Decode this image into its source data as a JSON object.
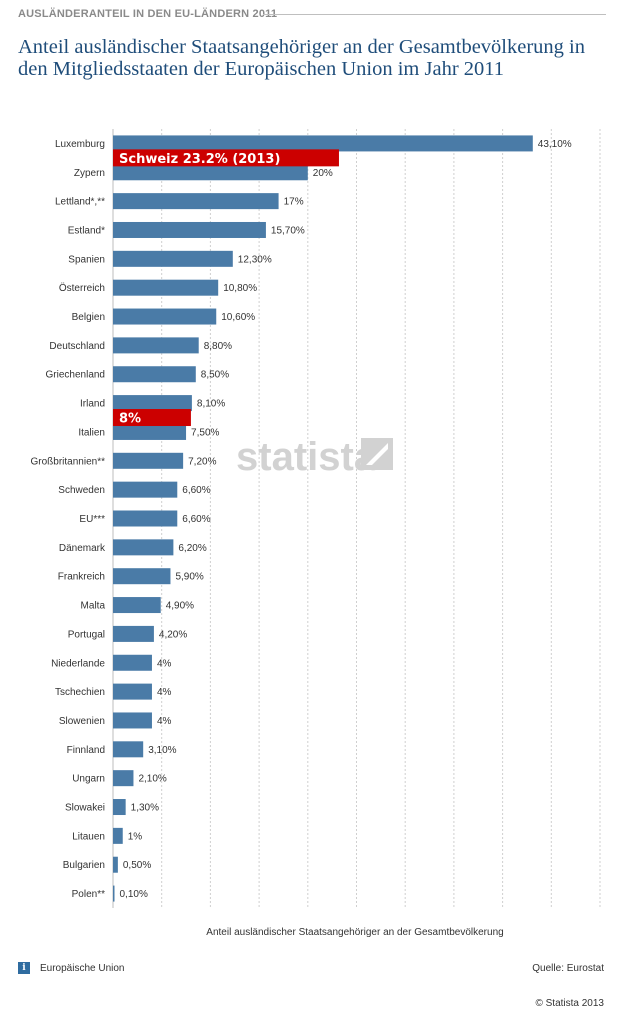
{
  "header": {
    "label": "AUSLÄNDERANTEIL IN DEN EU-LÄNDERN 2011",
    "title": "Anteil ausländischer Staatsangehöriger an der Gesamtbevölkerung in den Mitgliedsstaaten der Europäischen Union im Jahr 2011"
  },
  "chart_data": {
    "type": "bar",
    "orientation": "horizontal",
    "categories": [
      "Luxemburg",
      "Zypern",
      "Lettland*,**",
      "Estland*",
      "Spanien",
      "Österreich",
      "Belgien",
      "Deutschland",
      "Griechenland",
      "Irland",
      "Italien",
      "Großbritannien**",
      "Schweden",
      "EU***",
      "Dänemark",
      "Frankreich",
      "Malta",
      "Portugal",
      "Niederlande",
      "Tschechien",
      "Slowenien",
      "Finnland",
      "Ungarn",
      "Slowakei",
      "Litauen",
      "Bulgarien",
      "Polen**"
    ],
    "values": [
      43.1,
      20,
      17,
      15.7,
      12.3,
      10.8,
      10.6,
      8.8,
      8.5,
      8.1,
      7.5,
      7.2,
      6.6,
      6.6,
      6.2,
      5.9,
      4.9,
      4.2,
      4,
      4,
      4,
      3.1,
      2.1,
      1.3,
      1,
      0.5,
      0.1
    ],
    "value_labels": [
      "43,10%",
      "20%",
      "17%",
      "15,70%",
      "12,30%",
      "10,80%",
      "10,60%",
      "8,80%",
      "8,50%",
      "8,10%",
      "7,50%",
      "7,20%",
      "6,60%",
      "6,60%",
      "6,20%",
      "5,90%",
      "4,90%",
      "4,20%",
      "4%",
      "4%",
      "4%",
      "3,10%",
      "2,10%",
      "1,30%",
      "1%",
      "0,50%",
      "0,10%"
    ],
    "xlabel": "Anteil ausländischer Staatsangehöriger an der Gesamtbevölkerung",
    "xlim": [
      0,
      50
    ],
    "grid": true,
    "bar_color": "#4a7ba7",
    "annotations": [
      {
        "text": "Schweiz 23.2% (2013)",
        "value": 23.2,
        "after_category": "Luxemburg",
        "color": "#cc0000"
      },
      {
        "text": "8%",
        "value": 8,
        "after_category": "Irland",
        "color": "#cc0000"
      }
    ],
    "watermark": "statista"
  },
  "footer": {
    "info_icon": "i",
    "legend_label": "Europäische Union",
    "source": "Quelle: Eurostat",
    "copyright": "© Statista 2013"
  }
}
